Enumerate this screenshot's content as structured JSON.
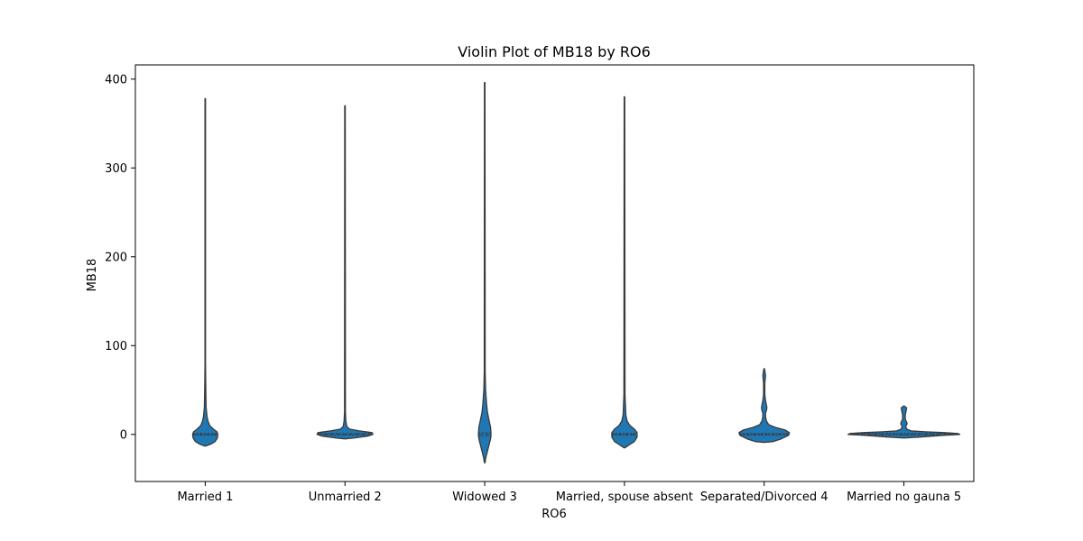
{
  "chart_data": {
    "type": "violin",
    "title": "Violin Plot of MB18 by RO6",
    "xlabel": "RO6",
    "ylabel": "MB18",
    "ylim": [
      -53,
      416
    ],
    "yticks": [
      0,
      100,
      200,
      300,
      400
    ],
    "categories": [
      "Married 1",
      "Unmarried 2",
      "Widowed 3",
      "Married, spouse absent",
      "Separated/Divorced 4",
      "Married no gauna 5"
    ],
    "violins": [
      {
        "category": "Married 1",
        "min": -13,
        "max": 378,
        "median": 0,
        "q1": -1,
        "q3": 1,
        "profile": [
          [
            -13,
            0.6
          ],
          [
            -11,
            6
          ],
          [
            -8,
            11
          ],
          [
            -4,
            13.5
          ],
          [
            0,
            14
          ],
          [
            3,
            13
          ],
          [
            6,
            9
          ],
          [
            10,
            5
          ],
          [
            15,
            3
          ],
          [
            20,
            2
          ],
          [
            30,
            1
          ],
          [
            40,
            0.8
          ],
          [
            60,
            0.5
          ],
          [
            80,
            0.3
          ],
          [
            378,
            0.3
          ]
        ]
      },
      {
        "category": "Unmarried 2",
        "min": -5,
        "max": 370,
        "median": 0,
        "q1": -1,
        "q3": 1,
        "profile": [
          [
            -5,
            0.5
          ],
          [
            -4,
            10
          ],
          [
            -2,
            25
          ],
          [
            0,
            31
          ],
          [
            2,
            30
          ],
          [
            4,
            16
          ],
          [
            6,
            5
          ],
          [
            9,
            2
          ],
          [
            15,
            1
          ],
          [
            25,
            0.5
          ],
          [
            370,
            0.3
          ]
        ]
      },
      {
        "category": "Widowed 3",
        "min": -32,
        "max": 396,
        "median": 0,
        "q1": -2,
        "q3": 2,
        "profile": [
          [
            -32,
            0.3
          ],
          [
            -25,
            1.5
          ],
          [
            -15,
            4
          ],
          [
            -5,
            6.5
          ],
          [
            0,
            7
          ],
          [
            8,
            6.5
          ],
          [
            15,
            5
          ],
          [
            25,
            3
          ],
          [
            35,
            2
          ],
          [
            50,
            1
          ],
          [
            70,
            0.5
          ],
          [
            396,
            0.3
          ]
        ]
      },
      {
        "category": "Married, spouse absent",
        "min": -15,
        "max": 380,
        "median": 0,
        "q1": -1,
        "q3": 1,
        "profile": [
          [
            -15,
            0.6
          ],
          [
            -12,
            5
          ],
          [
            -8,
            11
          ],
          [
            -3,
            14
          ],
          [
            2,
            14
          ],
          [
            6,
            11
          ],
          [
            10,
            6
          ],
          [
            15,
            3
          ],
          [
            22,
            1.5
          ],
          [
            35,
            1
          ],
          [
            45,
            0.6
          ],
          [
            380,
            0.3
          ]
        ]
      },
      {
        "category": "Separated/Divorced 4",
        "min": -9,
        "max": 74,
        "median": 0,
        "q1": -1,
        "q3": 1,
        "profile": [
          [
            -9,
            0.5
          ],
          [
            -8,
            10
          ],
          [
            -5,
            19
          ],
          [
            -1,
            27
          ],
          [
            2,
            28
          ],
          [
            5,
            23
          ],
          [
            8,
            12
          ],
          [
            11,
            5
          ],
          [
            15,
            2.5
          ],
          [
            20,
            1.5
          ],
          [
            24,
            1.5
          ],
          [
            27,
            2.5
          ],
          [
            30,
            3
          ],
          [
            33,
            2.5
          ],
          [
            38,
            1.5
          ],
          [
            45,
            0.7
          ],
          [
            58,
            0.7
          ],
          [
            66,
            1.5
          ],
          [
            70,
            1
          ],
          [
            74,
            0.3
          ]
        ]
      },
      {
        "category": "Married no gauna 5",
        "min": -4,
        "max": 32,
        "median": 0,
        "q1": -1,
        "q3": 1,
        "profile": [
          [
            -4,
            0.5
          ],
          [
            -3,
            18
          ],
          [
            -1,
            45
          ],
          [
            0,
            62
          ],
          [
            1,
            60
          ],
          [
            2,
            45
          ],
          [
            3,
            24
          ],
          [
            4,
            8
          ],
          [
            6,
            3
          ],
          [
            9,
            2
          ],
          [
            12,
            3.5
          ],
          [
            14,
            3
          ],
          [
            17,
            1.5
          ],
          [
            22,
            1.5
          ],
          [
            27,
            2.5
          ],
          [
            30,
            3
          ],
          [
            32,
            0.3
          ]
        ]
      }
    ],
    "colors": {
      "fill": "#1f77b4",
      "edge": "#3a3a3a",
      "axis": "#000000"
    }
  }
}
